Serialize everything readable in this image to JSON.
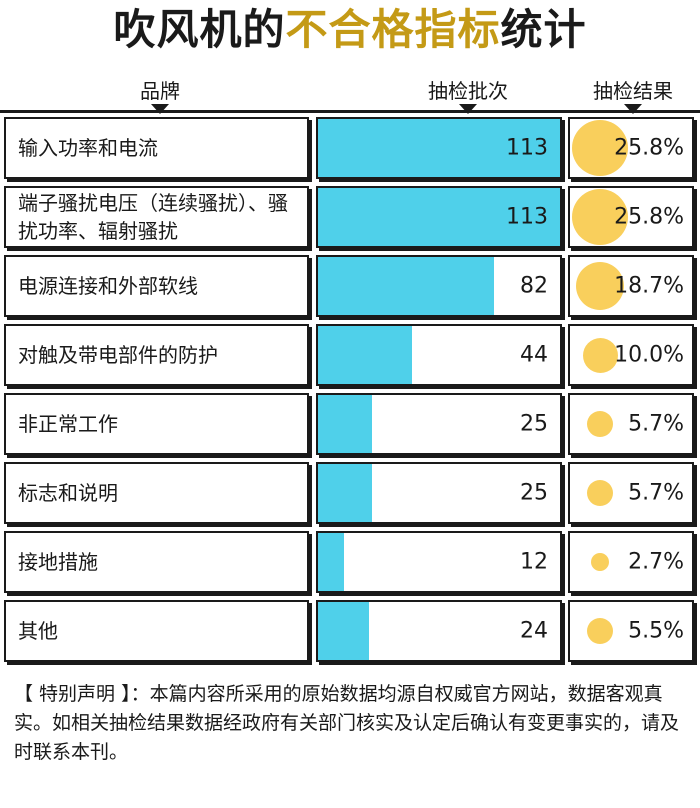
{
  "title": {
    "part1": "吹风机的",
    "part2": "不合格指标",
    "part3": "统计"
  },
  "headers": {
    "brand": "品牌",
    "batches": "抽检批次",
    "result": "抽检结果"
  },
  "colors": {
    "bar": "#4fd0ea",
    "dot": "#f9cf5c",
    "title_highlight": "#c49a16"
  },
  "chart_data": {
    "type": "bar",
    "categories": [
      "输入功率和电流",
      "端子骚扰电压（连续骚扰）、骚扰功率、辐射骚扰",
      "电源连接和外部软线",
      "对触及带电部件的防护",
      "非正常工作",
      "标志和说明",
      "接地措施",
      "其他"
    ],
    "values": [
      113,
      113,
      82,
      44,
      25,
      25,
      12,
      24
    ],
    "percentages": [
      "25.8%",
      "25.8%",
      "18.7%",
      "10.0%",
      "5.7%",
      "5.7%",
      "2.7%",
      "5.5%"
    ],
    "xlim": [
      0,
      113
    ]
  },
  "rows": [
    {
      "label": "输入功率和电流",
      "value": "113",
      "pct": "25.8%"
    },
    {
      "label": "端子骚扰电压（连续骚扰）、骚扰功率、辐射骚扰",
      "value": "113",
      "pct": "25.8%"
    },
    {
      "label": "电源连接和外部软线",
      "value": "82",
      "pct": "18.7%"
    },
    {
      "label": "对触及带电部件的防护",
      "value": "44",
      "pct": "10.0%"
    },
    {
      "label": "非正常工作",
      "value": "25",
      "pct": "5.7%"
    },
    {
      "label": "标志和说明",
      "value": "25",
      "pct": "5.7%"
    },
    {
      "label": "接地措施",
      "value": "12",
      "pct": "2.7%"
    },
    {
      "label": "其他",
      "value": "24",
      "pct": "5.5%"
    }
  ],
  "disclaimer": "【 特别声明 】：本篇内容所采用的原始数据均源自权威官方网站，数据客观真实。如相关抽检结果数据经政府有关部门核实及认定后确认有变更事实的，请及时联系本刊。"
}
